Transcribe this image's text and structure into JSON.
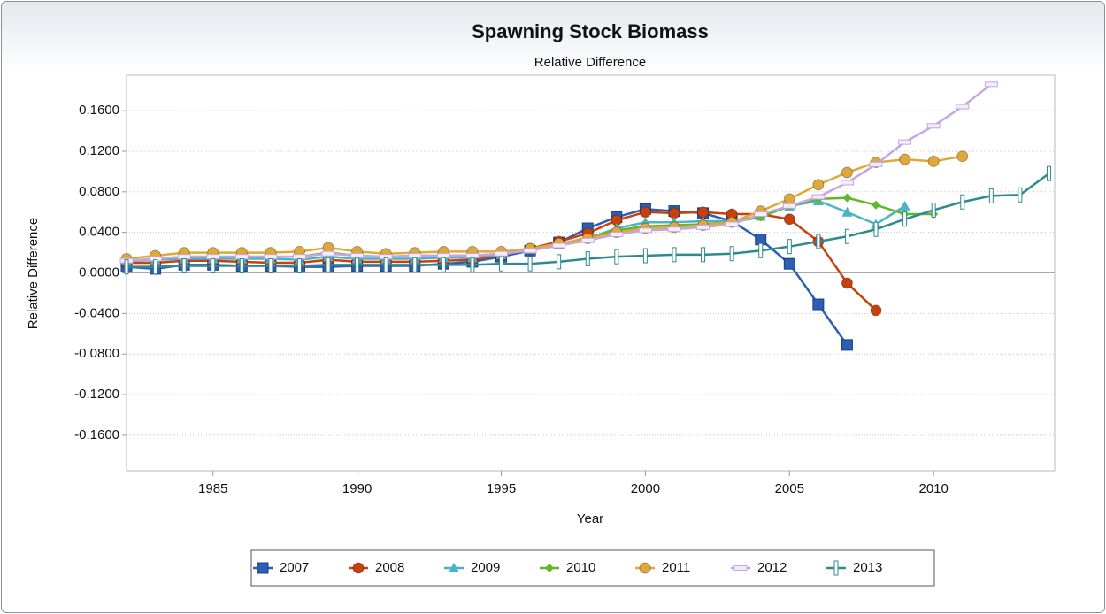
{
  "chart_data": {
    "type": "line",
    "title": "Spawning Stock Biomass",
    "subtitle": "Relative Difference",
    "x_label": "Year",
    "y_label": "Relative Difference",
    "x": [
      1982,
      1983,
      1984,
      1985,
      1986,
      1987,
      1988,
      1989,
      1990,
      1991,
      1992,
      1993,
      1994,
      1995,
      1996,
      1997,
      1998,
      1999,
      2000,
      2001,
      2002,
      2003,
      2004,
      2005,
      2006,
      2007,
      2008,
      2009,
      2010,
      2011,
      2012,
      2013,
      2014
    ],
    "xlim": [
      1982,
      2014.2
    ],
    "xticks": [
      1985,
      1990,
      1995,
      2000,
      2005,
      2010
    ],
    "ylim": [
      -0.195,
      0.195
    ],
    "yticks": [
      {
        "value": -0.16,
        "label": "-0.1600"
      },
      {
        "value": -0.12,
        "label": "-0.1200"
      },
      {
        "value": -0.08,
        "label": "-0.0800"
      },
      {
        "value": -0.04,
        "label": "-0.0400"
      },
      {
        "value": 0,
        "label": "0.0000"
      },
      {
        "value": 0.04,
        "label": "0.0400"
      },
      {
        "value": 0.08,
        "label": "0.0800"
      },
      {
        "value": 0.12,
        "label": "0.1200"
      },
      {
        "value": 0.16,
        "label": "0.1600"
      }
    ],
    "grid": true,
    "series": [
      {
        "name": "2007",
        "color": "#2b5fb4",
        "marker": "square",
        "values": [
          0.006,
          0.004,
          0.008,
          0.008,
          0.007,
          0.007,
          0.006,
          0.006,
          0.007,
          0.007,
          0.007,
          0.009,
          0.011,
          0.016,
          0.022,
          0.03,
          0.044,
          0.055,
          0.063,
          0.061,
          0.059,
          0.051,
          0.033,
          0.009,
          -0.031,
          -0.071,
          null,
          null,
          null,
          null,
          null,
          null,
          null
        ]
      },
      {
        "name": "2008",
        "color": "#c8400e",
        "marker": "circle",
        "values": [
          0.01,
          0.01,
          0.012,
          0.012,
          0.011,
          0.01,
          0.01,
          0.013,
          0.011,
          0.011,
          0.011,
          0.012,
          0.013,
          0.017,
          0.024,
          0.031,
          0.039,
          0.052,
          0.06,
          0.059,
          0.06,
          0.058,
          0.058,
          0.053,
          0.031,
          -0.01,
          -0.037,
          null,
          null,
          null,
          null,
          null,
          null
        ]
      },
      {
        "name": "2009",
        "color": "#4cb2c6",
        "marker": "triangle",
        "values": [
          0.012,
          0.013,
          0.014,
          0.014,
          0.014,
          0.014,
          0.013,
          0.016,
          0.014,
          0.014,
          0.014,
          0.015,
          0.015,
          0.018,
          0.023,
          0.028,
          0.034,
          0.044,
          0.05,
          0.05,
          0.051,
          0.051,
          0.056,
          0.066,
          0.071,
          0.06,
          0.048,
          0.066,
          null,
          null,
          null,
          null,
          null
        ]
      },
      {
        "name": "2010",
        "color": "#62b62a",
        "marker": "diamond",
        "values": [
          0.012,
          0.014,
          0.016,
          0.016,
          0.016,
          0.016,
          0.016,
          0.02,
          0.017,
          0.016,
          0.017,
          0.017,
          0.017,
          0.019,
          0.023,
          0.028,
          0.035,
          0.042,
          0.046,
          0.047,
          0.048,
          0.05,
          0.055,
          0.066,
          0.073,
          0.074,
          0.067,
          0.058,
          0.058,
          null,
          null,
          null,
          null
        ]
      },
      {
        "name": "2011",
        "color": "#e0a838",
        "marker": "circle",
        "values": [
          0.014,
          0.017,
          0.02,
          0.02,
          0.02,
          0.02,
          0.021,
          0.025,
          0.021,
          0.019,
          0.02,
          0.021,
          0.021,
          0.021,
          0.024,
          0.029,
          0.034,
          0.04,
          0.044,
          0.045,
          0.047,
          0.05,
          0.061,
          0.073,
          0.087,
          0.099,
          0.109,
          0.112,
          0.11,
          0.115,
          null,
          null,
          null
        ]
      },
      {
        "name": "2012",
        "color": "#c4a6e2",
        "marker": "dash",
        "values": [
          0.012,
          0.014,
          0.016,
          0.016,
          0.016,
          0.016,
          0.016,
          0.019,
          0.017,
          0.016,
          0.017,
          0.017,
          0.017,
          0.019,
          0.022,
          0.027,
          0.032,
          0.038,
          0.042,
          0.043,
          0.045,
          0.048,
          0.058,
          0.066,
          0.075,
          0.089,
          0.107,
          0.129,
          0.145,
          0.164,
          0.186,
          null,
          null
        ]
      },
      {
        "name": "2013",
        "color": "#2e8a8e",
        "marker": "tick",
        "values": [
          0.006,
          0.006,
          0.007,
          0.007,
          0.007,
          0.007,
          0.007,
          0.008,
          0.008,
          0.008,
          0.008,
          0.008,
          0.008,
          0.009,
          0.009,
          0.011,
          0.014,
          0.016,
          0.017,
          0.018,
          0.018,
          0.019,
          0.022,
          0.026,
          0.031,
          0.036,
          0.043,
          0.053,
          0.062,
          0.07,
          0.076,
          0.077,
          0.098
        ]
      }
    ]
  }
}
